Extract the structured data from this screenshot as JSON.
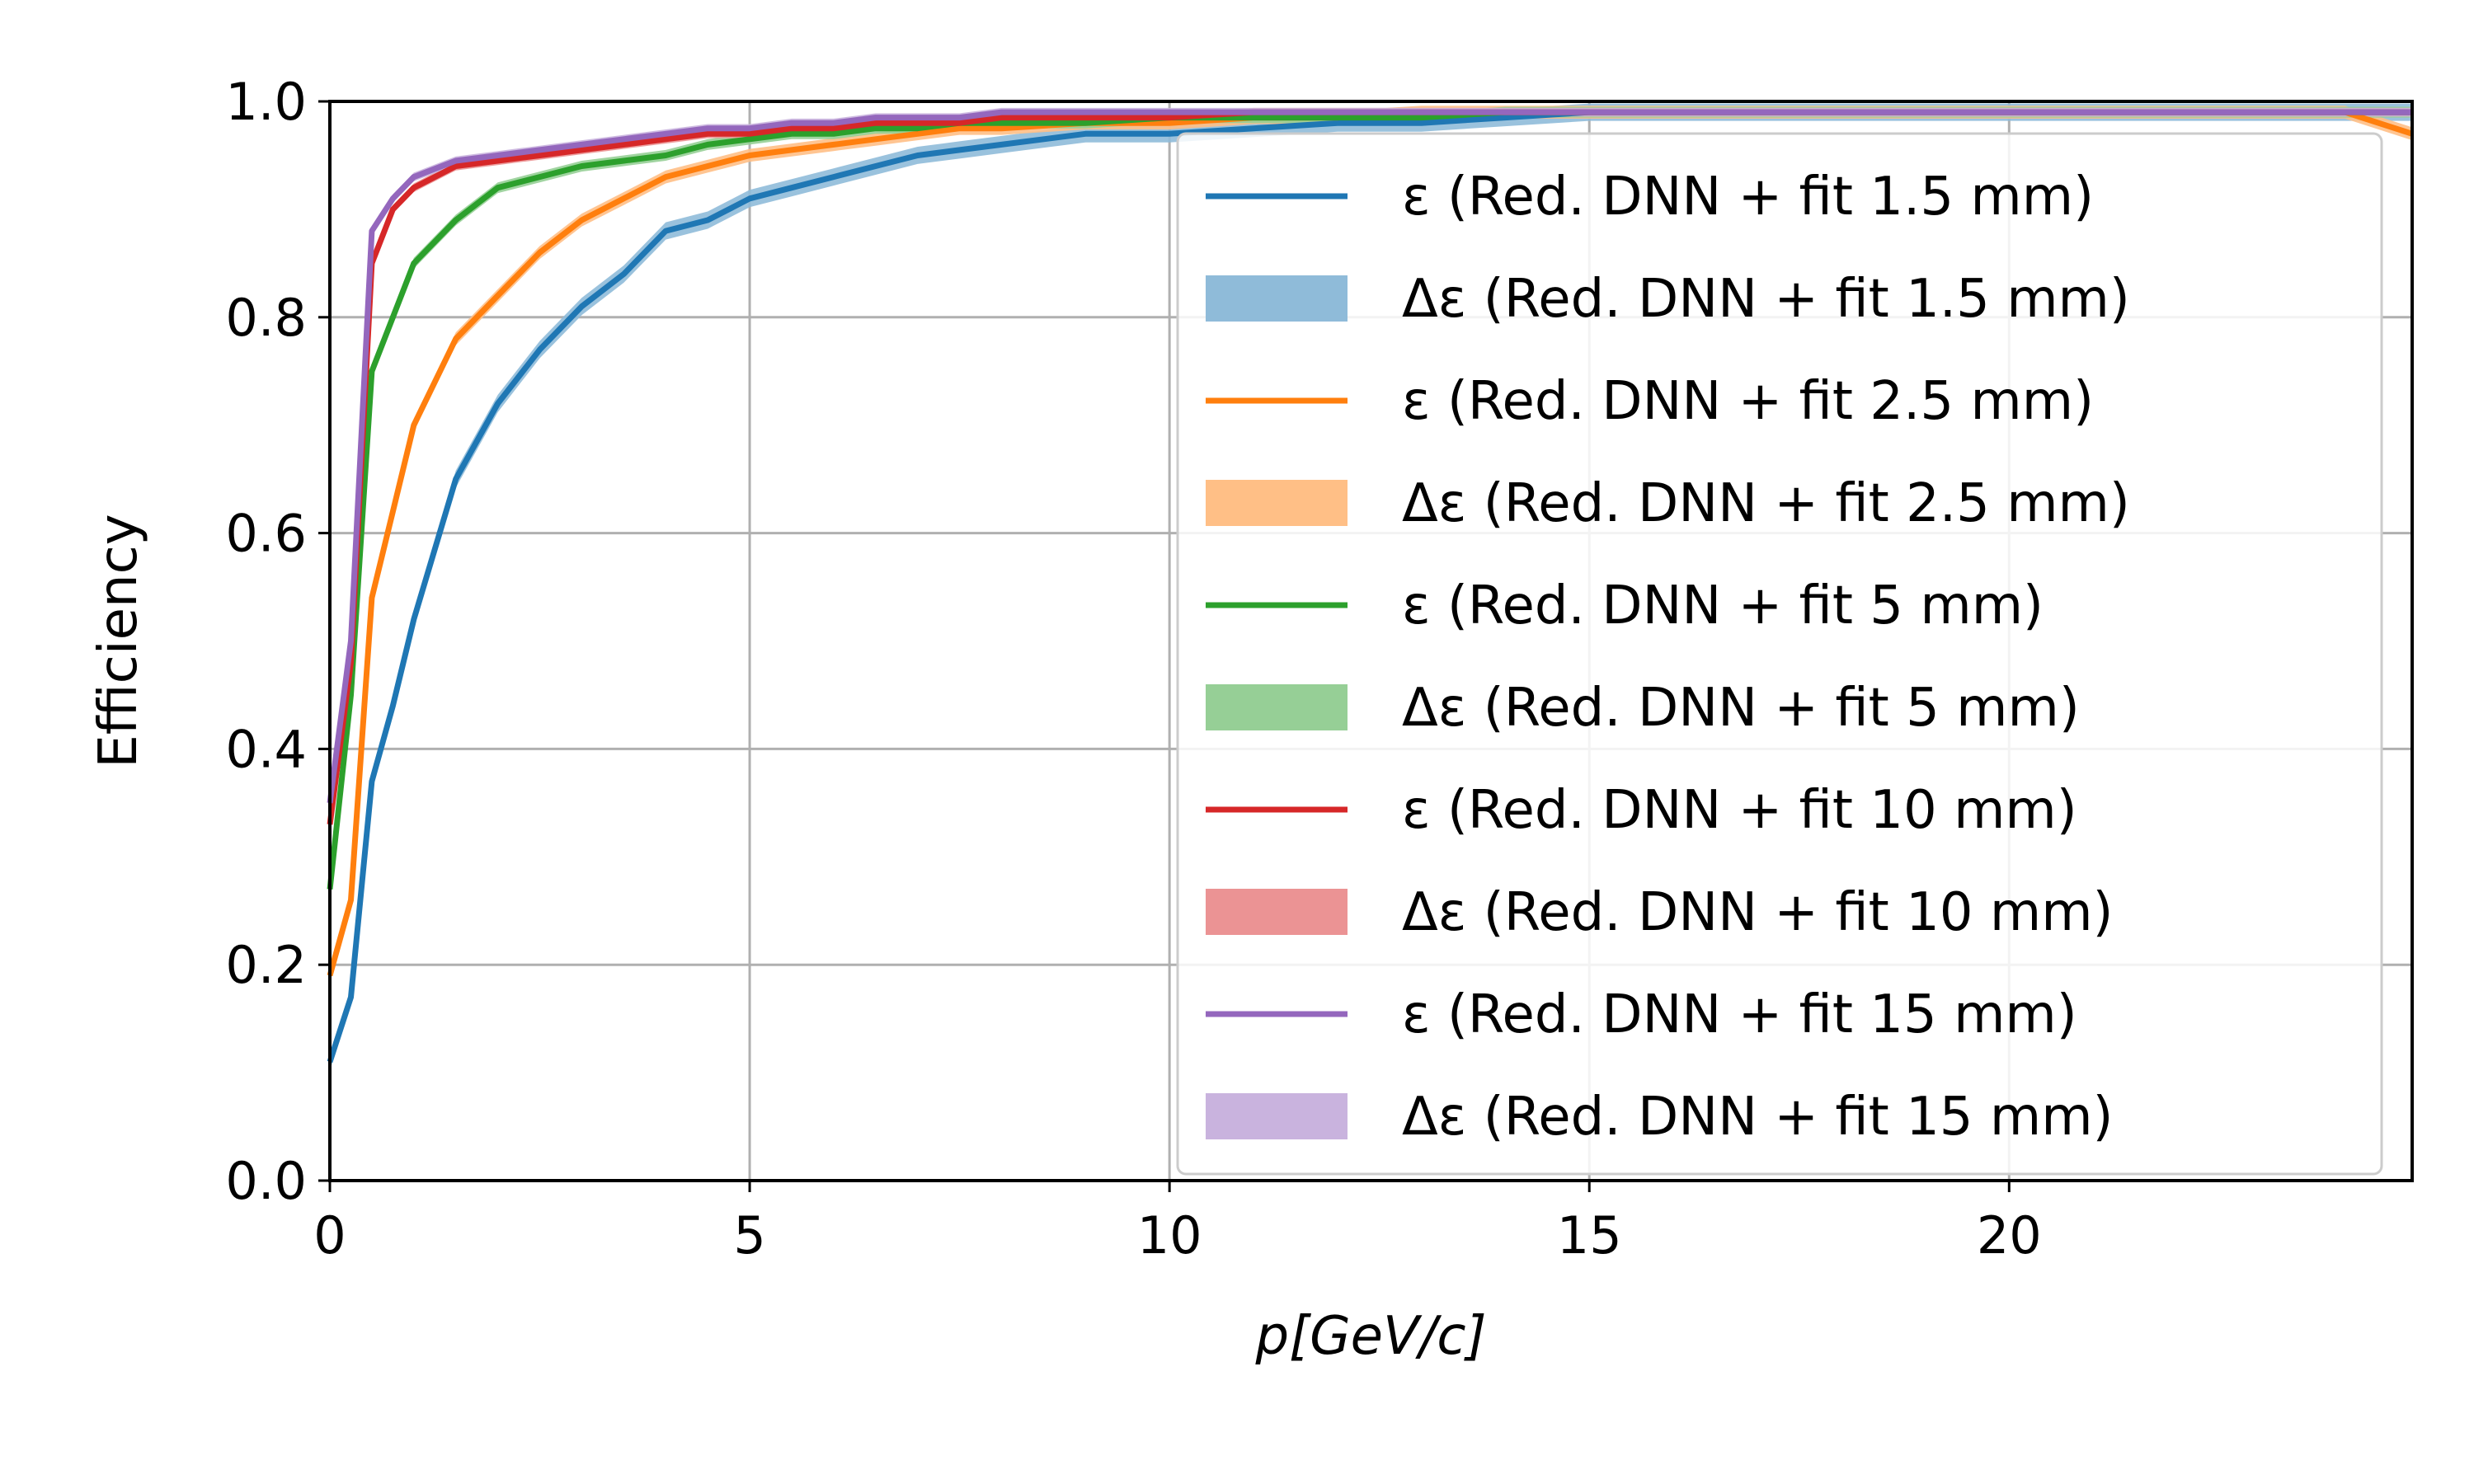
{
  "chart_data": {
    "type": "line",
    "title": "",
    "xlabel": "p[GeV/c]",
    "ylabel": "Efficiency",
    "xlim": [
      0,
      24.8
    ],
    "ylim": [
      0.0,
      1.0
    ],
    "xticks": [
      0,
      5,
      10,
      15,
      20
    ],
    "xtick_labels": [
      "0",
      "5",
      "10",
      "15",
      "20"
    ],
    "yticks": [
      0.0,
      0.2,
      0.4,
      0.6,
      0.8,
      1.0
    ],
    "ytick_labels": [
      "0.0",
      "0.2",
      "0.4",
      "0.6",
      "0.8",
      "1.0"
    ],
    "grid": true,
    "legend_position": "right",
    "x": [
      0.0,
      0.25,
      0.5,
      0.75,
      1.0,
      1.5,
      2.0,
      2.5,
      3.0,
      3.5,
      4.0,
      4.5,
      5.0,
      5.5,
      6.0,
      6.5,
      7.0,
      7.5,
      8.0,
      9.0,
      10.0,
      11.0,
      12.0,
      13.0,
      14.0,
      15.0,
      16.0,
      17.0,
      18.0,
      19.0,
      20.0,
      21.0,
      22.0,
      23.0,
      24.0,
      24.8
    ],
    "series": [
      {
        "name": "ε (Red. DNN + fit 1.5 mm)",
        "band_name": "Δε (Red. DNN + fit 1.5 mm)",
        "color": "#1f77b4",
        "band_color": "#8fbbd9",
        "values": [
          0.11,
          0.17,
          0.37,
          0.44,
          0.52,
          0.65,
          0.72,
          0.77,
          0.81,
          0.84,
          0.88,
          0.89,
          0.91,
          0.92,
          0.93,
          0.94,
          0.95,
          0.955,
          0.96,
          0.97,
          0.97,
          0.975,
          0.98,
          0.98,
          0.985,
          0.99,
          0.99,
          0.99,
          0.99,
          0.99,
          0.99,
          0.99,
          0.99,
          0.99,
          0.99,
          0.99
        ],
        "band_halfwidth": 0.008
      },
      {
        "name": "ε (Red. DNN + fit 2.5 mm)",
        "band_name": "Δε (Red. DNN + fit 2.5 mm)",
        "color": "#ff7f0e",
        "band_color": "#ffbf86",
        "values": [
          0.19,
          0.26,
          0.54,
          0.62,
          0.7,
          0.78,
          0.82,
          0.86,
          0.89,
          0.91,
          0.93,
          0.94,
          0.95,
          0.955,
          0.96,
          0.965,
          0.97,
          0.975,
          0.975,
          0.98,
          0.98,
          0.985,
          0.985,
          0.99,
          0.99,
          0.99,
          0.99,
          0.99,
          0.99,
          0.99,
          0.99,
          0.99,
          0.99,
          0.99,
          0.99,
          0.97
        ],
        "band_halfwidth": 0.006
      },
      {
        "name": "ε (Red. DNN + fit 5 mm)",
        "band_name": "Δε (Red. DNN + fit 5 mm)",
        "color": "#2ca02c",
        "band_color": "#96cf96",
        "values": [
          0.27,
          0.45,
          0.75,
          0.8,
          0.85,
          0.89,
          0.92,
          0.93,
          0.94,
          0.945,
          0.95,
          0.96,
          0.965,
          0.97,
          0.97,
          0.975,
          0.975,
          0.98,
          0.98,
          0.98,
          0.985,
          0.985,
          0.985,
          0.985,
          0.99,
          0.99,
          0.99,
          0.99,
          0.99,
          0.99,
          0.99,
          0.99,
          0.99,
          0.99,
          0.99,
          0.99
        ],
        "band_halfwidth": 0.005
      },
      {
        "name": "ε (Red. DNN + fit 10 mm)",
        "band_name": "Δε (Red. DNN + fit 10 mm)",
        "color": "#d62728",
        "band_color": "#eb9394",
        "values": [
          0.33,
          0.48,
          0.85,
          0.9,
          0.92,
          0.94,
          0.945,
          0.95,
          0.955,
          0.96,
          0.965,
          0.97,
          0.97,
          0.975,
          0.975,
          0.98,
          0.98,
          0.98,
          0.985,
          0.985,
          0.985,
          0.99,
          0.99,
          0.99,
          0.99,
          0.99,
          0.99,
          0.99,
          0.99,
          0.99,
          0.99,
          0.99,
          0.99,
          0.99,
          0.99,
          0.99
        ],
        "band_halfwidth": 0.004
      },
      {
        "name": "ε (Red. DNN + fit 15 mm)",
        "band_name": "Δε (Red. DNN + fit 15 mm)",
        "color": "#9467bd",
        "band_color": "#c9b3de",
        "values": [
          0.35,
          0.5,
          0.88,
          0.91,
          0.93,
          0.945,
          0.95,
          0.955,
          0.96,
          0.965,
          0.97,
          0.975,
          0.975,
          0.98,
          0.98,
          0.985,
          0.985,
          0.985,
          0.99,
          0.99,
          0.99,
          0.99,
          0.99,
          0.99,
          0.99,
          0.99,
          0.99,
          0.99,
          0.99,
          0.99,
          0.99,
          0.99,
          0.99,
          0.99,
          0.99,
          0.99
        ],
        "band_halfwidth": 0.004
      }
    ]
  }
}
